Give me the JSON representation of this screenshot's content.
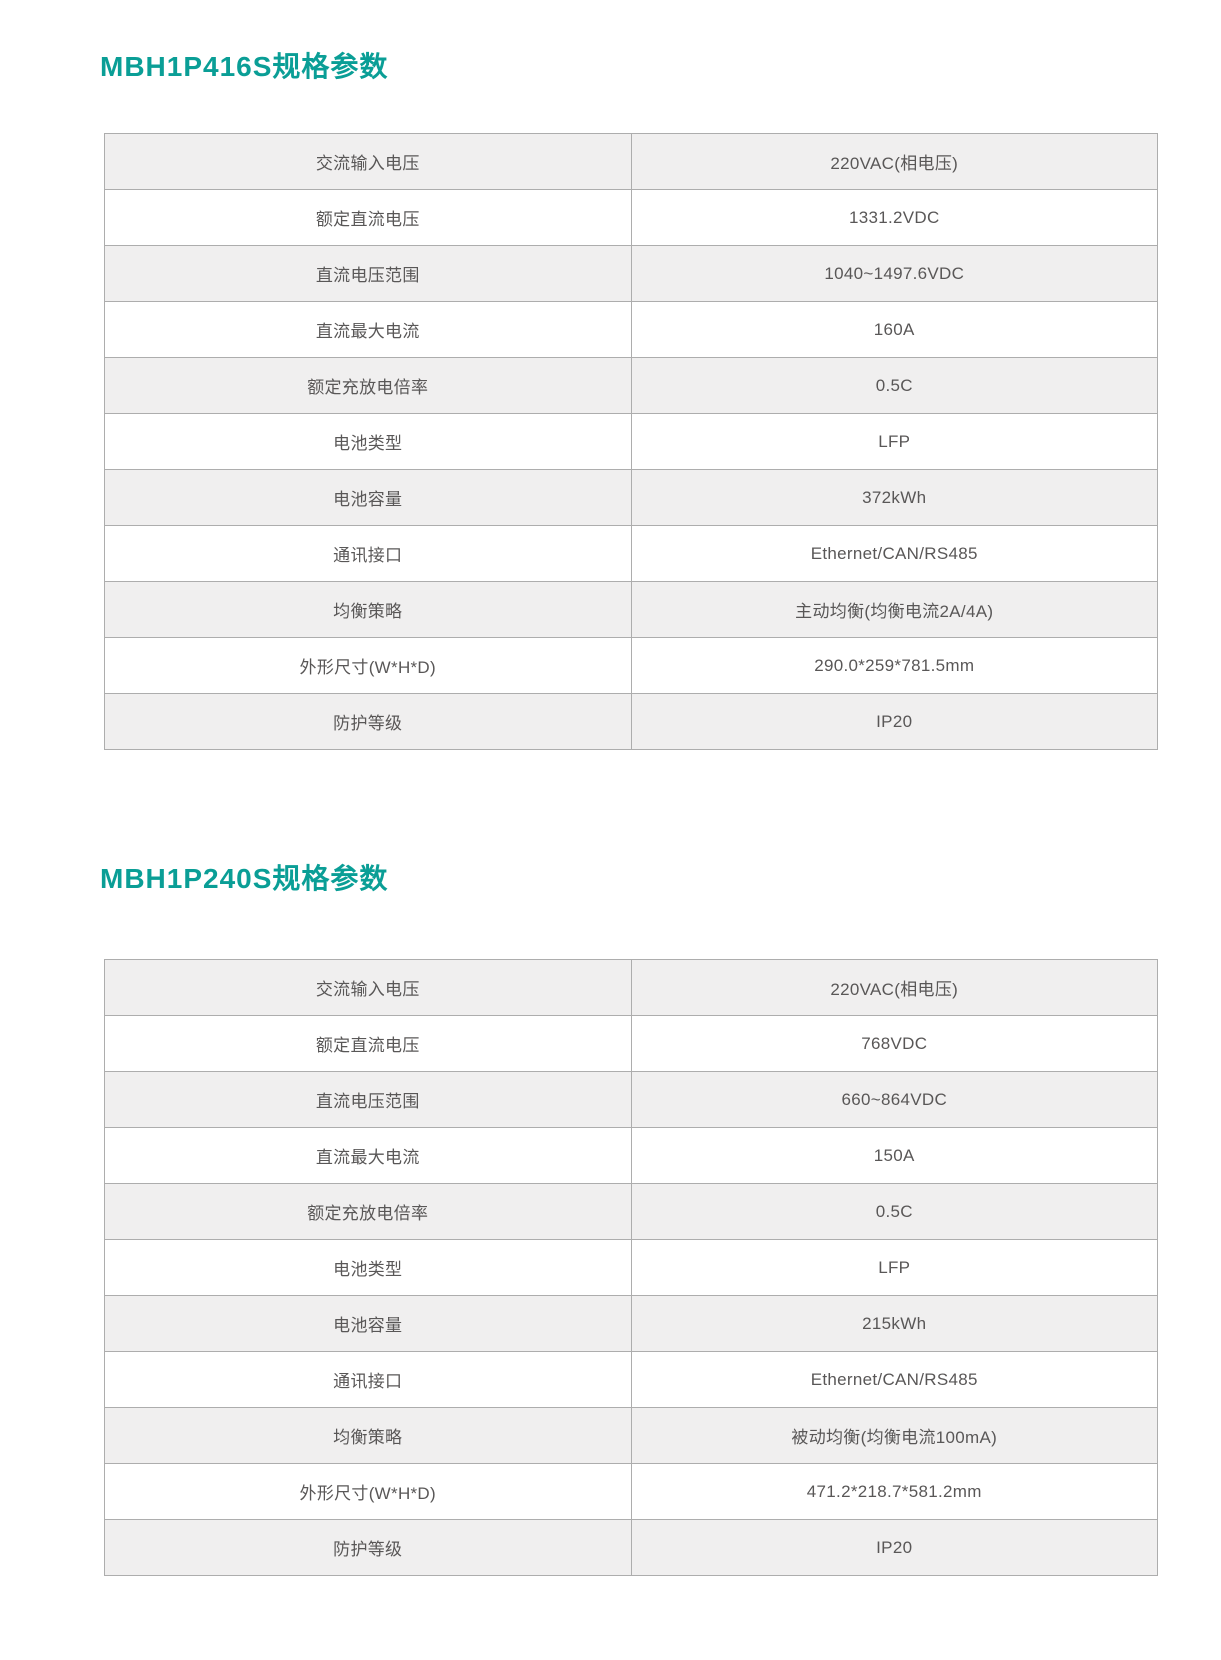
{
  "page": {
    "accent_color": "#0a9e96",
    "text_color": "#595757",
    "border_color": "#adadad",
    "row_alt_bg": "#f0efef"
  },
  "sections": [
    {
      "title": "MBH1P416S规格参数",
      "rows": [
        {
          "label": "交流输入电压",
          "value": "220VAC(相电压)"
        },
        {
          "label": "额定直流电压",
          "value": "1331.2VDC"
        },
        {
          "label": "直流电压范围",
          "value": "1040~1497.6VDC"
        },
        {
          "label": "直流最大电流",
          "value": "160A"
        },
        {
          "label": "额定充放电倍率",
          "value": "0.5C"
        },
        {
          "label": "电池类型",
          "value": "LFP"
        },
        {
          "label": "电池容量",
          "value": "372kWh"
        },
        {
          "label": "通讯接口",
          "value": "Ethernet/CAN/RS485"
        },
        {
          "label": "均衡策略",
          "value": "主动均衡(均衡电流2A/4A)"
        },
        {
          "label": "外形尺寸(W*H*D)",
          "value": "290.0*259*781.5mm"
        },
        {
          "label": "防护等级",
          "value": "IP20"
        }
      ]
    },
    {
      "title": "MBH1P240S规格参数",
      "rows": [
        {
          "label": "交流输入电压",
          "value": "220VAC(相电压)"
        },
        {
          "label": "额定直流电压",
          "value": "768VDC"
        },
        {
          "label": "直流电压范围",
          "value": "660~864VDC"
        },
        {
          "label": "直流最大电流",
          "value": "150A"
        },
        {
          "label": "额定充放电倍率",
          "value": "0.5C"
        },
        {
          "label": "电池类型",
          "value": "LFP"
        },
        {
          "label": "电池容量",
          "value": "215kWh"
        },
        {
          "label": "通讯接口",
          "value": "Ethernet/CAN/RS485"
        },
        {
          "label": "均衡策略",
          "value": "被动均衡(均衡电流100mA)"
        },
        {
          "label": "外形尺寸(W*H*D)",
          "value": "471.2*218.7*581.2mm"
        },
        {
          "label": "防护等级",
          "value": "IP20"
        }
      ]
    }
  ]
}
